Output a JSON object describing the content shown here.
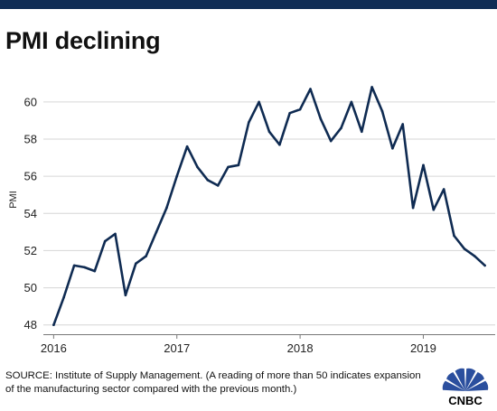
{
  "header": {
    "title": "PMI declining"
  },
  "footer": {
    "source": "SOURCE: Institute of Supply Management. (A reading of more than 50 indicates expansion of the manufacturing sector compared with the previous month.)"
  },
  "logo": {
    "text": "CNBC",
    "icon": "peacock-icon",
    "colors": [
      "#f37021",
      "#fcb711",
      "#cc004c",
      "#6460aa",
      "#0089d0",
      "#0db14b"
    ]
  },
  "chart_data": {
    "type": "line",
    "title": "PMI declining",
    "xlabel": "",
    "ylabel": "PMI",
    "ylim": [
      47.5,
      61.5
    ],
    "yticks": [
      48,
      50,
      52,
      54,
      56,
      58,
      60
    ],
    "xticks": [
      "2016",
      "2017",
      "2018",
      "2019"
    ],
    "x_range": [
      "2015-12",
      "2019-08"
    ],
    "grid": "horizontal",
    "legend": "none",
    "line_color": "#0f2b52",
    "x": [
      "2016-01",
      "2016-02",
      "2016-03",
      "2016-04",
      "2016-05",
      "2016-06",
      "2016-07",
      "2016-08",
      "2016-09",
      "2016-10",
      "2016-11",
      "2016-12",
      "2017-01",
      "2017-02",
      "2017-03",
      "2017-04",
      "2017-05",
      "2017-06",
      "2017-07",
      "2017-08",
      "2017-09",
      "2017-10",
      "2017-11",
      "2017-12",
      "2018-01",
      "2018-02",
      "2018-03",
      "2018-04",
      "2018-05",
      "2018-06",
      "2018-07",
      "2018-08",
      "2018-09",
      "2018-10",
      "2018-11",
      "2018-12",
      "2019-01",
      "2019-02",
      "2019-03",
      "2019-04",
      "2019-05",
      "2019-06",
      "2019-07"
    ],
    "series": [
      {
        "values": [
          48.0,
          49.5,
          51.2,
          51.1,
          50.9,
          52.5,
          52.9,
          49.6,
          51.3,
          51.7,
          53.0,
          54.3,
          56.0,
          57.6,
          56.5,
          55.8,
          55.5,
          56.5,
          56.6,
          58.9,
          60.0,
          58.4,
          57.7,
          59.4,
          59.6,
          60.7,
          59.1,
          57.9,
          58.6,
          60.0,
          58.4,
          60.8,
          59.5,
          57.5,
          58.8,
          54.3,
          56.6,
          54.2,
          55.3,
          52.8,
          52.1,
          51.7,
          51.2
        ]
      }
    ]
  }
}
